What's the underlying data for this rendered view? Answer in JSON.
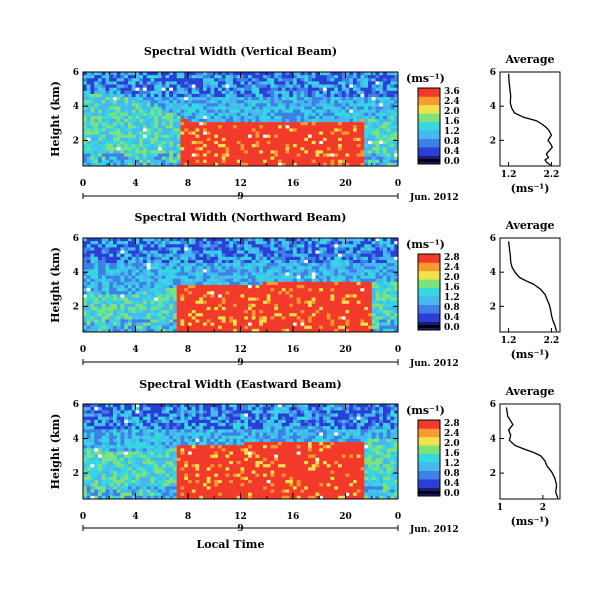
{
  "colors": {
    "dark": "#1a1a7a",
    "blue": "#2a3fd6",
    "mid_blue": "#3f7fe8",
    "light_blue": "#46b7ef",
    "cyan": "#35d7e0",
    "green": "#7ce37c",
    "yellow": "#f0e24a",
    "orange": "#f89a2f",
    "red": "#f23a2a",
    "gap": "#ffffff"
  },
  "chart_data": [
    {
      "type": "heatmap",
      "title": "Spectral Width (Vertical Beam)",
      "ylabel": "Height (km)",
      "y_ticks": [
        "6",
        "4",
        "2"
      ],
      "x_ticks": [
        "0",
        "4",
        "8",
        "12",
        "16",
        "20",
        "0"
      ],
      "date_marker": "9",
      "date_label": "Jun. 2012",
      "x_range": [
        0,
        24
      ],
      "y_range": [
        0.5,
        6
      ],
      "colorbar": {
        "unit": "(ms⁻¹)",
        "ticks": [
          "3.6",
          "2.4",
          "2.0",
          "1.6",
          "1.2",
          "0.8",
          "0.4",
          "0.0"
        ],
        "range": [
          0,
          3.6
        ]
      },
      "boundary_km": [
        [
          0,
          4.6
        ],
        [
          2,
          4.7
        ],
        [
          4,
          4.3
        ],
        [
          6,
          3.9
        ],
        [
          7,
          3.6
        ],
        [
          8,
          3.1
        ],
        [
          12,
          3.0
        ],
        [
          16,
          3.1
        ],
        [
          20,
          3.0
        ],
        [
          21.5,
          3.2
        ],
        [
          24,
          3.4
        ]
      ],
      "red_zone_hours": [
        7.3,
        21.5
      ]
    },
    {
      "type": "line",
      "title": "Average",
      "xlabel": "(ms⁻¹)",
      "x_ticks": [
        "1.2",
        "2.2"
      ],
      "y_ticks": [
        "6",
        "4",
        "2"
      ],
      "xlim": [
        1.0,
        2.4
      ],
      "ylim": [
        0.5,
        6
      ],
      "x": [
        1.2,
        1.21,
        1.23,
        1.25,
        1.24,
        1.27,
        1.34,
        1.55,
        1.85,
        1.98,
        2.08,
        2.15,
        2.2,
        2.12,
        2.18,
        2.22,
        2.15,
        2.08,
        2.13,
        2.05,
        2.1,
        2.18
      ],
      "y": [
        5.9,
        5.5,
        5.0,
        4.6,
        4.2,
        3.9,
        3.6,
        3.35,
        3.15,
        2.95,
        2.75,
        2.55,
        2.3,
        2.0,
        1.8,
        1.6,
        1.4,
        1.2,
        1.0,
        0.85,
        0.7,
        0.55
      ]
    },
    {
      "type": "heatmap",
      "title": "Spectral Width (Northward Beam)",
      "ylabel": "Height (km)",
      "y_ticks": [
        "6",
        "4",
        "2"
      ],
      "x_ticks": [
        "0",
        "4",
        "8",
        "12",
        "16",
        "20",
        "0"
      ],
      "date_marker": "9",
      "date_label": "Jun. 2012",
      "x_range": [
        0,
        24
      ],
      "y_range": [
        0.5,
        6
      ],
      "colorbar": {
        "unit": "(ms⁻¹)",
        "ticks": [
          "2.8",
          "2.4",
          "2.0",
          "1.6",
          "1.2",
          "0.8",
          "0.4",
          "0.0"
        ],
        "range": [
          0,
          2.8
        ]
      },
      "boundary_km": [
        [
          0,
          2.6
        ],
        [
          3,
          2.7
        ],
        [
          5,
          2.9
        ],
        [
          7,
          3.2
        ],
        [
          8,
          3.3
        ],
        [
          12,
          3.3
        ],
        [
          16,
          3.4
        ],
        [
          20,
          3.5
        ],
        [
          24,
          3.5
        ]
      ],
      "red_zone_hours": [
        7.0,
        22.0
      ]
    },
    {
      "type": "line",
      "title": "Average",
      "xlabel": "(ms⁻¹)",
      "x_ticks": [
        "1.2",
        "2.2"
      ],
      "y_ticks": [
        "6",
        "4",
        "2"
      ],
      "xlim": [
        1.0,
        2.4
      ],
      "ylim": [
        0.5,
        6
      ],
      "x": [
        1.2,
        1.22,
        1.24,
        1.25,
        1.28,
        1.35,
        1.45,
        1.6,
        1.78,
        1.95,
        2.05,
        2.1,
        2.15,
        2.18,
        2.2,
        2.23,
        2.28,
        2.3,
        2.32
      ],
      "y": [
        5.8,
        5.4,
        5.0,
        4.6,
        4.3,
        4.0,
        3.7,
        3.5,
        3.3,
        3.0,
        2.7,
        2.4,
        2.1,
        1.8,
        1.5,
        1.2,
        0.9,
        0.7,
        0.55
      ]
    },
    {
      "type": "heatmap",
      "title": "Spectral Width (Eastward Beam)",
      "ylabel": "Height (km)",
      "y_ticks": [
        "6",
        "4",
        "2"
      ],
      "x_ticks": [
        "0",
        "4",
        "8",
        "12",
        "16",
        "20",
        "0"
      ],
      "date_marker": "9",
      "date_label": "Jun. 2012",
      "xlabel": "Local Time",
      "x_range": [
        0,
        24
      ],
      "y_range": [
        0.5,
        6
      ],
      "colorbar": {
        "unit": "(ms⁻¹)",
        "ticks": [
          "2.8",
          "2.4",
          "2.0",
          "1.6",
          "1.2",
          "0.8",
          "0.4",
          "0.0"
        ],
        "range": [
          0,
          2.8
        ]
      },
      "boundary_km": [
        [
          0,
          3.4
        ],
        [
          3,
          3.3
        ],
        [
          5,
          3.3
        ],
        [
          7,
          3.6
        ],
        [
          8,
          3.7
        ],
        [
          12,
          3.7
        ],
        [
          16,
          3.8
        ],
        [
          20,
          3.8
        ],
        [
          24,
          4.0
        ]
      ],
      "red_zone_hours": [
        7.0,
        21.5
      ]
    },
    {
      "type": "line",
      "title": "Average",
      "xlabel": "(ms⁻¹)",
      "x_ticks": [
        "1",
        "2"
      ],
      "y_ticks": [
        "6",
        "4",
        "2"
      ],
      "xlim": [
        1.0,
        2.4
      ],
      "ylim": [
        0.5,
        6
      ],
      "x": [
        1.15,
        1.18,
        1.3,
        1.2,
        1.25,
        1.22,
        1.35,
        1.55,
        1.78,
        1.95,
        2.05,
        2.1,
        2.2,
        2.28,
        2.32,
        2.3,
        2.35
      ],
      "y": [
        5.8,
        5.3,
        4.8,
        4.5,
        4.2,
        3.9,
        3.6,
        3.4,
        3.2,
        3.0,
        2.7,
        2.4,
        2.1,
        1.7,
        1.3,
        0.9,
        0.55
      ]
    }
  ]
}
